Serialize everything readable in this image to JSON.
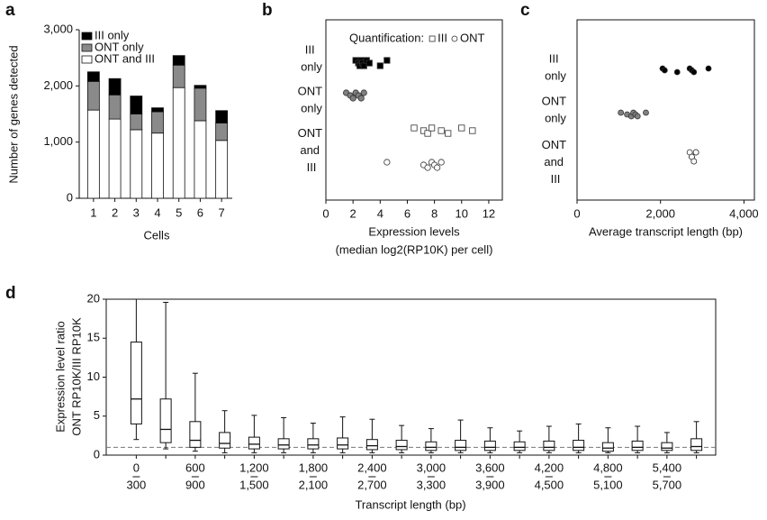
{
  "chart_data": [
    {
      "panel": "a",
      "type": "stacked_bar",
      "categories": [
        "1",
        "2",
        "3",
        "4",
        "5",
        "6",
        "7"
      ],
      "xlabel": "Cells",
      "ylabel": "Number of genes detected",
      "series": [
        {
          "name": "ONT and III",
          "color": "#ffffff",
          "values": [
            1570,
            1410,
            1220,
            1160,
            1970,
            1380,
            1030
          ]
        },
        {
          "name": "ONT only",
          "color": "#8a8a8a",
          "values": [
            510,
            430,
            280,
            380,
            400,
            580,
            310
          ]
        },
        {
          "name": "III only",
          "color": "#000000",
          "values": [
            170,
            290,
            320,
            70,
            170,
            50,
            220
          ]
        }
      ],
      "ylim": [
        0,
        3000
      ],
      "yticks": [
        0,
        {
          "value": 1000,
          "label": "1,000"
        },
        {
          "value": 2000,
          "label": "2,000"
        },
        {
          "value": 3000,
          "label": "3,000"
        }
      ],
      "legend": "top-left"
    },
    {
      "panel": "b",
      "type": "strip",
      "legend_title": "Quantification:",
      "categories": [
        "III only",
        "ONT only",
        "ONT and III"
      ],
      "category_colors": [
        "#000000",
        "#808080",
        "#ffffff"
      ],
      "series": [
        {
          "name": "III",
          "marker": "square",
          "values": [
            [
              2.2,
              2.4,
              2.5,
              2.6,
              2.7,
              2.8,
              3.0,
              3.2,
              4.0,
              4.5
            ],
            null,
            [
              6.5,
              7.2,
              7.5,
              7.8,
              8.5,
              9.0,
              10.0,
              10.8
            ]
          ]
        },
        {
          "name": "ONT",
          "marker": "circle",
          "values": [
            null,
            [
              1.5,
              1.8,
              2.0,
              2.2,
              2.4,
              2.6,
              2.8
            ],
            [
              4.5,
              7.2,
              7.5,
              7.8,
              8.0,
              8.2,
              8.5
            ]
          ]
        }
      ],
      "xlabel": [
        "Expression levels",
        "(median log2(RP10K) per cell)"
      ],
      "xlim": [
        0,
        13
      ],
      "xticks": [
        0,
        2,
        4,
        6,
        8,
        10,
        12
      ]
    },
    {
      "panel": "c",
      "type": "strip",
      "categories": [
        "III only",
        "ONT only",
        "ONT and III"
      ],
      "category_colors": [
        "#000000",
        "#808080",
        "#ffffff"
      ],
      "series": [
        {
          "marker": "circle",
          "values": [
            [
              2050,
              2100,
              2400,
              2700,
              2750,
              2800,
              3150
            ],
            [
              1050,
              1200,
              1300,
              1350,
              1400,
              1450,
              1650
            ],
            [
              2700,
              2750,
              2800,
              2850,
              2750,
              2800,
              2850
            ]
          ]
        }
      ],
      "xlabel": "Average transcript length (bp)",
      "xlim": [
        0,
        4250
      ],
      "xticks": [
        0,
        {
          "value": 2000,
          "label": "2,000"
        },
        {
          "value": 4000,
          "label": "4,000"
        }
      ]
    },
    {
      "panel": "d",
      "type": "box",
      "ylabel": [
        "Expression level ratio",
        "ONT RP10K/III RP10K"
      ],
      "xlabel": "Transcript length (bp)",
      "categories": [
        [
          "0",
          "300"
        ],
        null,
        [
          "600",
          "900"
        ],
        null,
        [
          "1,200",
          "1,500"
        ],
        null,
        [
          "1,800",
          "2,100"
        ],
        null,
        [
          "2,400",
          "2,700"
        ],
        null,
        [
          "3,000",
          "3,300"
        ],
        null,
        [
          "3,600",
          "3,900"
        ],
        null,
        [
          "4,200",
          "4,500"
        ],
        null,
        [
          "4,800",
          "5,100"
        ],
        null,
        [
          "5,400",
          "5,700"
        ],
        null
      ],
      "low": [
        2,
        0.8,
        0.5,
        0.3,
        0.3,
        0.3,
        0.3,
        0.3,
        0.3,
        0.3,
        0.3,
        0.3,
        0.3,
        0.3,
        0.3,
        0.3,
        0.3,
        0.3,
        0.3,
        0.3
      ],
      "q1": [
        4,
        1.6,
        1,
        0.9,
        0.8,
        0.8,
        0.8,
        0.8,
        0.7,
        0.7,
        0.6,
        0.6,
        0.6,
        0.6,
        0.6,
        0.6,
        0.5,
        0.6,
        0.6,
        0.6
      ],
      "median": [
        7.2,
        3.3,
        1.9,
        1.5,
        1.4,
        1.3,
        1.3,
        1.3,
        1.2,
        1.1,
        1.0,
        1.0,
        1.0,
        1.0,
        1.0,
        1.0,
        0.9,
        1.0,
        0.9,
        1.1
      ],
      "q3": [
        14.5,
        7.2,
        4.3,
        2.9,
        2.3,
        2.1,
        2.1,
        2.2,
        2.0,
        1.9,
        1.7,
        1.9,
        1.8,
        1.7,
        1.8,
        1.9,
        1.6,
        1.8,
        1.6,
        2.1
      ],
      "high": [
        20,
        19.6,
        10.5,
        5.7,
        5.1,
        4.8,
        4.1,
        4.9,
        4.6,
        3.8,
        3.4,
        4.5,
        3.5,
        3.1,
        3.7,
        4.0,
        3.5,
        3.7,
        2.9,
        4.3
      ],
      "reference_line": 1,
      "ylim": [
        0,
        20
      ],
      "yticks": [
        0,
        5,
        10,
        15,
        20
      ]
    }
  ]
}
